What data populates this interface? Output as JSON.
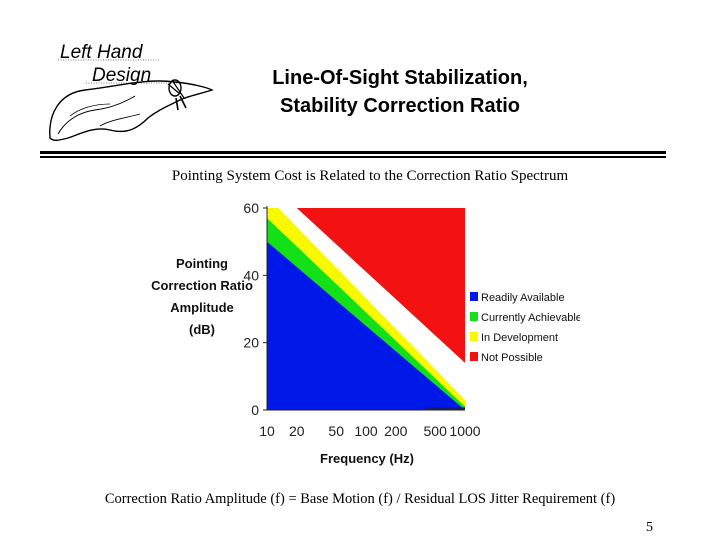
{
  "logo": {
    "line1": "Left Hand",
    "line2": "Design"
  },
  "slide": {
    "title_line1": "Line-Of-Sight Stabilization,",
    "title_line2": "Stability Correction Ratio",
    "subtitle": "Pointing System Cost is Related to the Correction Ratio Spectrum",
    "footer": "Correction Ratio Amplitude (f) = Base Motion (f) / Residual LOS Jitter Requirement (f)",
    "page_number": "5"
  },
  "chart_data": {
    "type": "area",
    "title": "",
    "xlabel": "Frequency (Hz)",
    "ylabel_lines": [
      "Pointing",
      "Correction Ratio",
      "Amplitude",
      "(dB)"
    ],
    "x_scale": "log",
    "x_ticks": [
      10,
      20,
      50,
      100,
      200,
      500,
      1000
    ],
    "x_tick_labels": [
      "10",
      "20",
      "50",
      "100",
      "200",
      "500",
      "1000"
    ],
    "y_ticks": [
      0,
      20,
      40,
      60
    ],
    "y_tick_labels": [
      "0",
      "20",
      "40",
      "60"
    ],
    "xlim": [
      10,
      1000
    ],
    "ylim": [
      0,
      60
    ],
    "legend_position": "right",
    "series": [
      {
        "name": "Readily Available",
        "color": "#0018e8",
        "boundary": [
          [
            10,
            50
          ],
          [
            1000,
            0
          ]
        ]
      },
      {
        "name": "Currently Achievable",
        "color": "#14e018",
        "boundary": [
          [
            10,
            57
          ],
          [
            1000,
            1
          ]
        ]
      },
      {
        "name": "In Development",
        "color": "#f8f800",
        "boundary": [
          [
            13,
            60
          ],
          [
            1000,
            3
          ]
        ]
      },
      {
        "name": "Not Possible",
        "color": "#f21212",
        "boundary": [
          [
            20,
            60
          ],
          [
            1000,
            14
          ]
        ]
      }
    ]
  }
}
